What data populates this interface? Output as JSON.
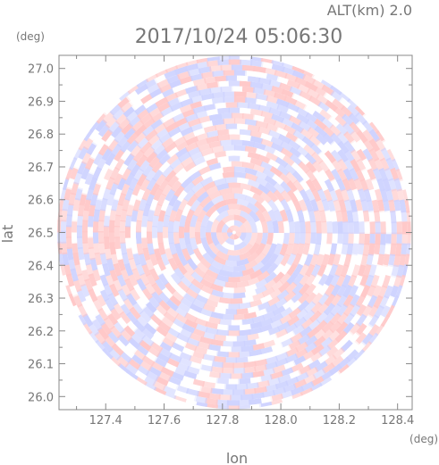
{
  "chart_data": {
    "type": "heatmap",
    "title": "2017/10/24 05:06:30",
    "subtitle": "ALT(km) 2.0",
    "xlabel": "lon",
    "ylabel": "lat",
    "x_unit": "(deg)",
    "y_unit": "(deg)",
    "xlim": [
      127.24,
      128.45
    ],
    "ylim": [
      25.96,
      27.04
    ],
    "x_ticks": [
      "127.4",
      "127.6",
      "127.8",
      "128.0",
      "128.2",
      "128.4"
    ],
    "y_ticks": [
      "26.0",
      "26.1",
      "26.2",
      "26.3",
      "26.4",
      "26.5",
      "26.6",
      "26.7",
      "26.8",
      "26.9",
      "27.0"
    ],
    "center": [
      127.84,
      26.5
    ],
    "grid": false,
    "colors": {
      "positive": "#ffc8c8",
      "negative": "#cdd2ff",
      "neutral": "#ffffff"
    }
  }
}
